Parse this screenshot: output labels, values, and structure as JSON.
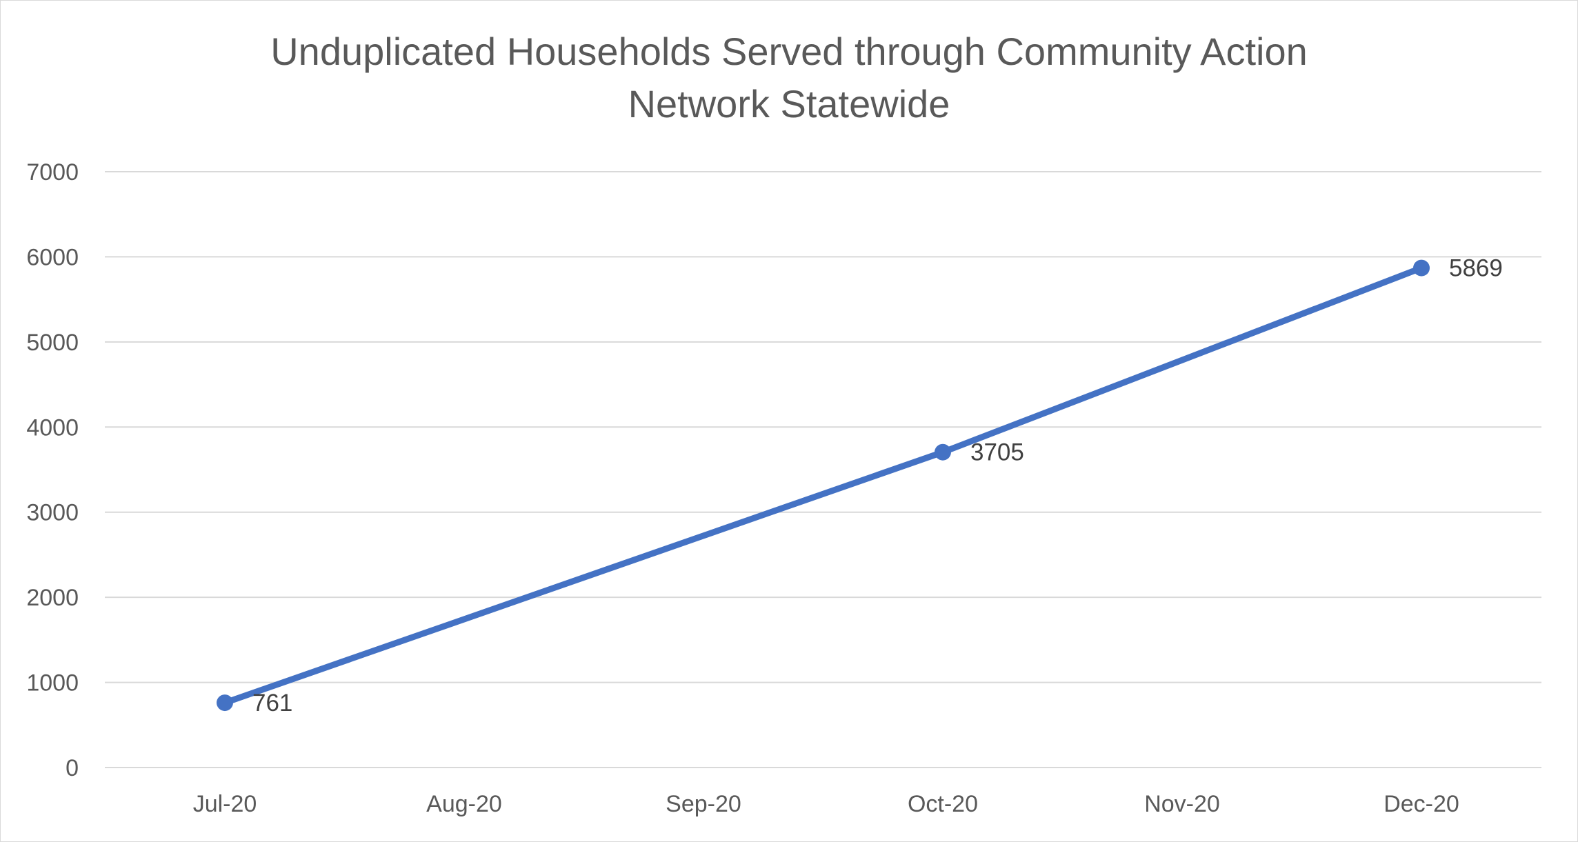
{
  "chart_data": {
    "type": "line",
    "title": "Unduplicated Households Served through Community Action Network Statewide",
    "title_lines": [
      "Unduplicated Households Served through Community Action",
      "Network Statewide"
    ],
    "xlabel": "",
    "ylabel": "",
    "categories": [
      "Jul-20",
      "Aug-20",
      "Sep-20",
      "Oct-20",
      "Nov-20",
      "Dec-20"
    ],
    "series": [
      {
        "color": "#4472c4",
        "points": [
          {
            "x": "Jul-20",
            "y": 761
          },
          {
            "x": "Oct-20",
            "y": 3705
          },
          {
            "x": "Dec-20",
            "y": 5869
          }
        ]
      }
    ],
    "ylim": [
      0,
      7000
    ],
    "yticks": [
      0,
      1000,
      2000,
      3000,
      4000,
      5000,
      6000,
      7000
    ],
    "grid": true,
    "legend": "none",
    "data_labels": true
  }
}
